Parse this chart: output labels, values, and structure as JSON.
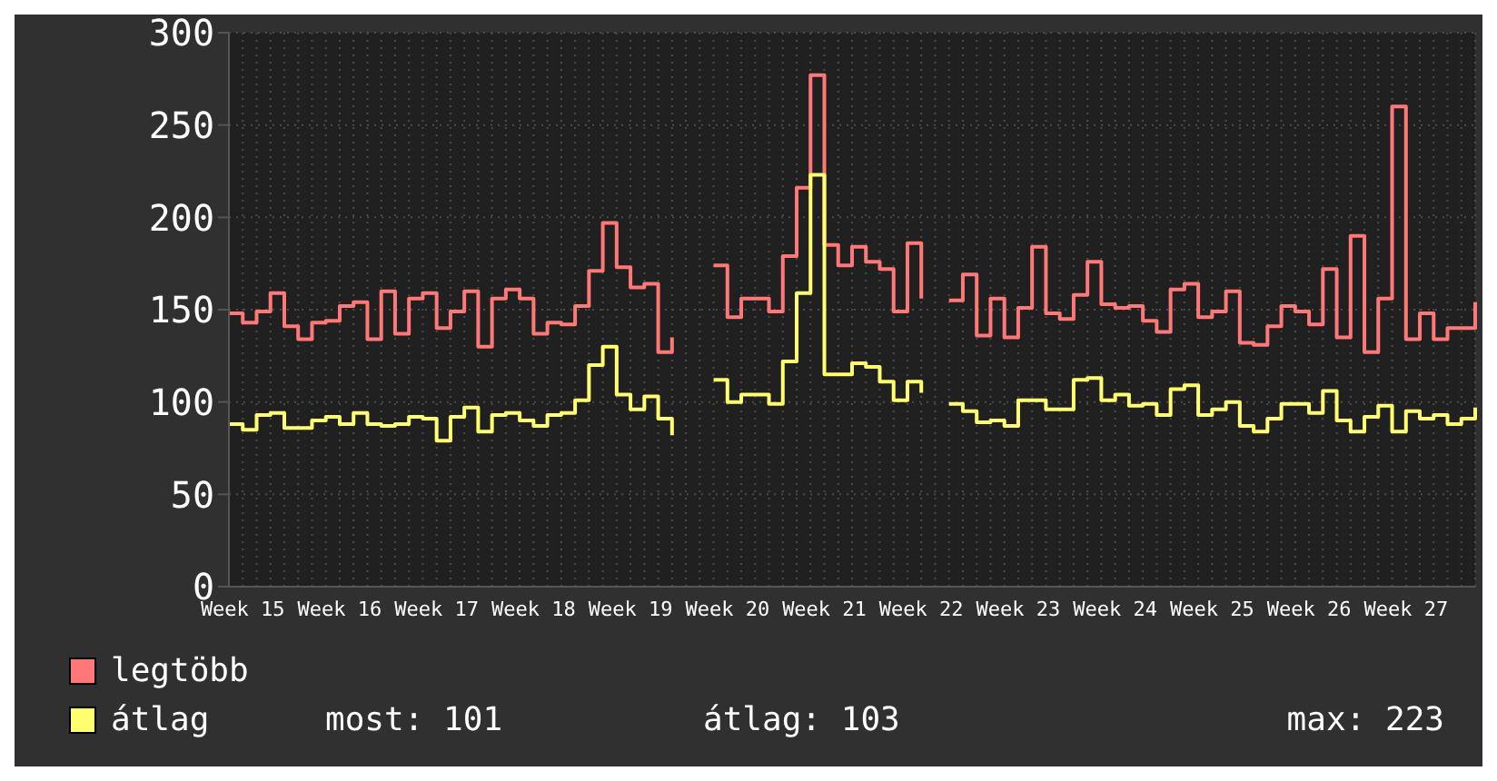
{
  "chart_data": {
    "type": "step",
    "categories": [
      null,
      "Week 15",
      null,
      null,
      null,
      null,
      null,
      null,
      "Week 16",
      null,
      null,
      null,
      null,
      null,
      null,
      "Week 17",
      null,
      null,
      null,
      null,
      null,
      null,
      "Week 18",
      null,
      null,
      null,
      null,
      null,
      null,
      "Week 19",
      null,
      null,
      null,
      null,
      null,
      null,
      "Week 20",
      null,
      null,
      null,
      null,
      null,
      null,
      "Week 21",
      null,
      null,
      null,
      null,
      null,
      null,
      "Week 22",
      null,
      null,
      null,
      null,
      null,
      null,
      "Week 23",
      null,
      null,
      null,
      null,
      null,
      null,
      "Week 24",
      null,
      null,
      null,
      null,
      null,
      null,
      "Week 25",
      null,
      null,
      null,
      null,
      null,
      null,
      "Week 26",
      null,
      null,
      null,
      null,
      null,
      null,
      "Week 27",
      null,
      null,
      null,
      null,
      null
    ],
    "series": [
      {
        "name": "legtöbb",
        "color": "#ff7878",
        "values": [
          148,
          143,
          149,
          159,
          141,
          134,
          143,
          144,
          152,
          154,
          134,
          160,
          137,
          156,
          159,
          140,
          149,
          160,
          130,
          156,
          161,
          156,
          137,
          143,
          142,
          152,
          171,
          197,
          173,
          162,
          164,
          127,
          135,
          null,
          null,
          174,
          146,
          156,
          156,
          149,
          179,
          216,
          277,
          185,
          174,
          184,
          176,
          172,
          149,
          186,
          156,
          null,
          155,
          169,
          136,
          156,
          135,
          151,
          184,
          148,
          145,
          158,
          176,
          153,
          151,
          152,
          144,
          138,
          161,
          164,
          146,
          149,
          160,
          132,
          131,
          141,
          152,
          149,
          142,
          172,
          135,
          190,
          127,
          156,
          260,
          134,
          148,
          134,
          140,
          140,
          154
        ]
      },
      {
        "name": "átlag",
        "color": "#ffff70",
        "values": [
          88,
          85,
          93,
          94,
          86,
          86,
          90,
          92,
          88,
          94,
          88,
          87,
          88,
          92,
          91,
          79,
          92,
          97,
          84,
          93,
          94,
          90,
          87,
          93,
          94,
          101,
          120,
          130,
          104,
          96,
          103,
          91,
          82,
          null,
          null,
          112,
          100,
          104,
          104,
          99,
          122,
          159,
          223,
          115,
          115,
          121,
          119,
          111,
          101,
          111,
          105,
          null,
          99,
          95,
          89,
          90,
          87,
          101,
          101,
          96,
          96,
          112,
          113,
          101,
          104,
          98,
          99,
          93,
          107,
          109,
          93,
          96,
          100,
          87,
          84,
          91,
          99,
          99,
          94,
          106,
          90,
          84,
          92,
          98,
          84,
          95,
          91,
          93,
          88,
          91,
          97
        ]
      }
    ],
    "ylim": [
      0,
      300
    ],
    "yticks": [
      0,
      50,
      100,
      150,
      200,
      250,
      300
    ],
    "grid": true,
    "legend": "bottom",
    "marker": "none",
    "line_style": "solid",
    "annotations": [
      "most: 101",
      "átlag: 103",
      "max: 223"
    ]
  }
}
